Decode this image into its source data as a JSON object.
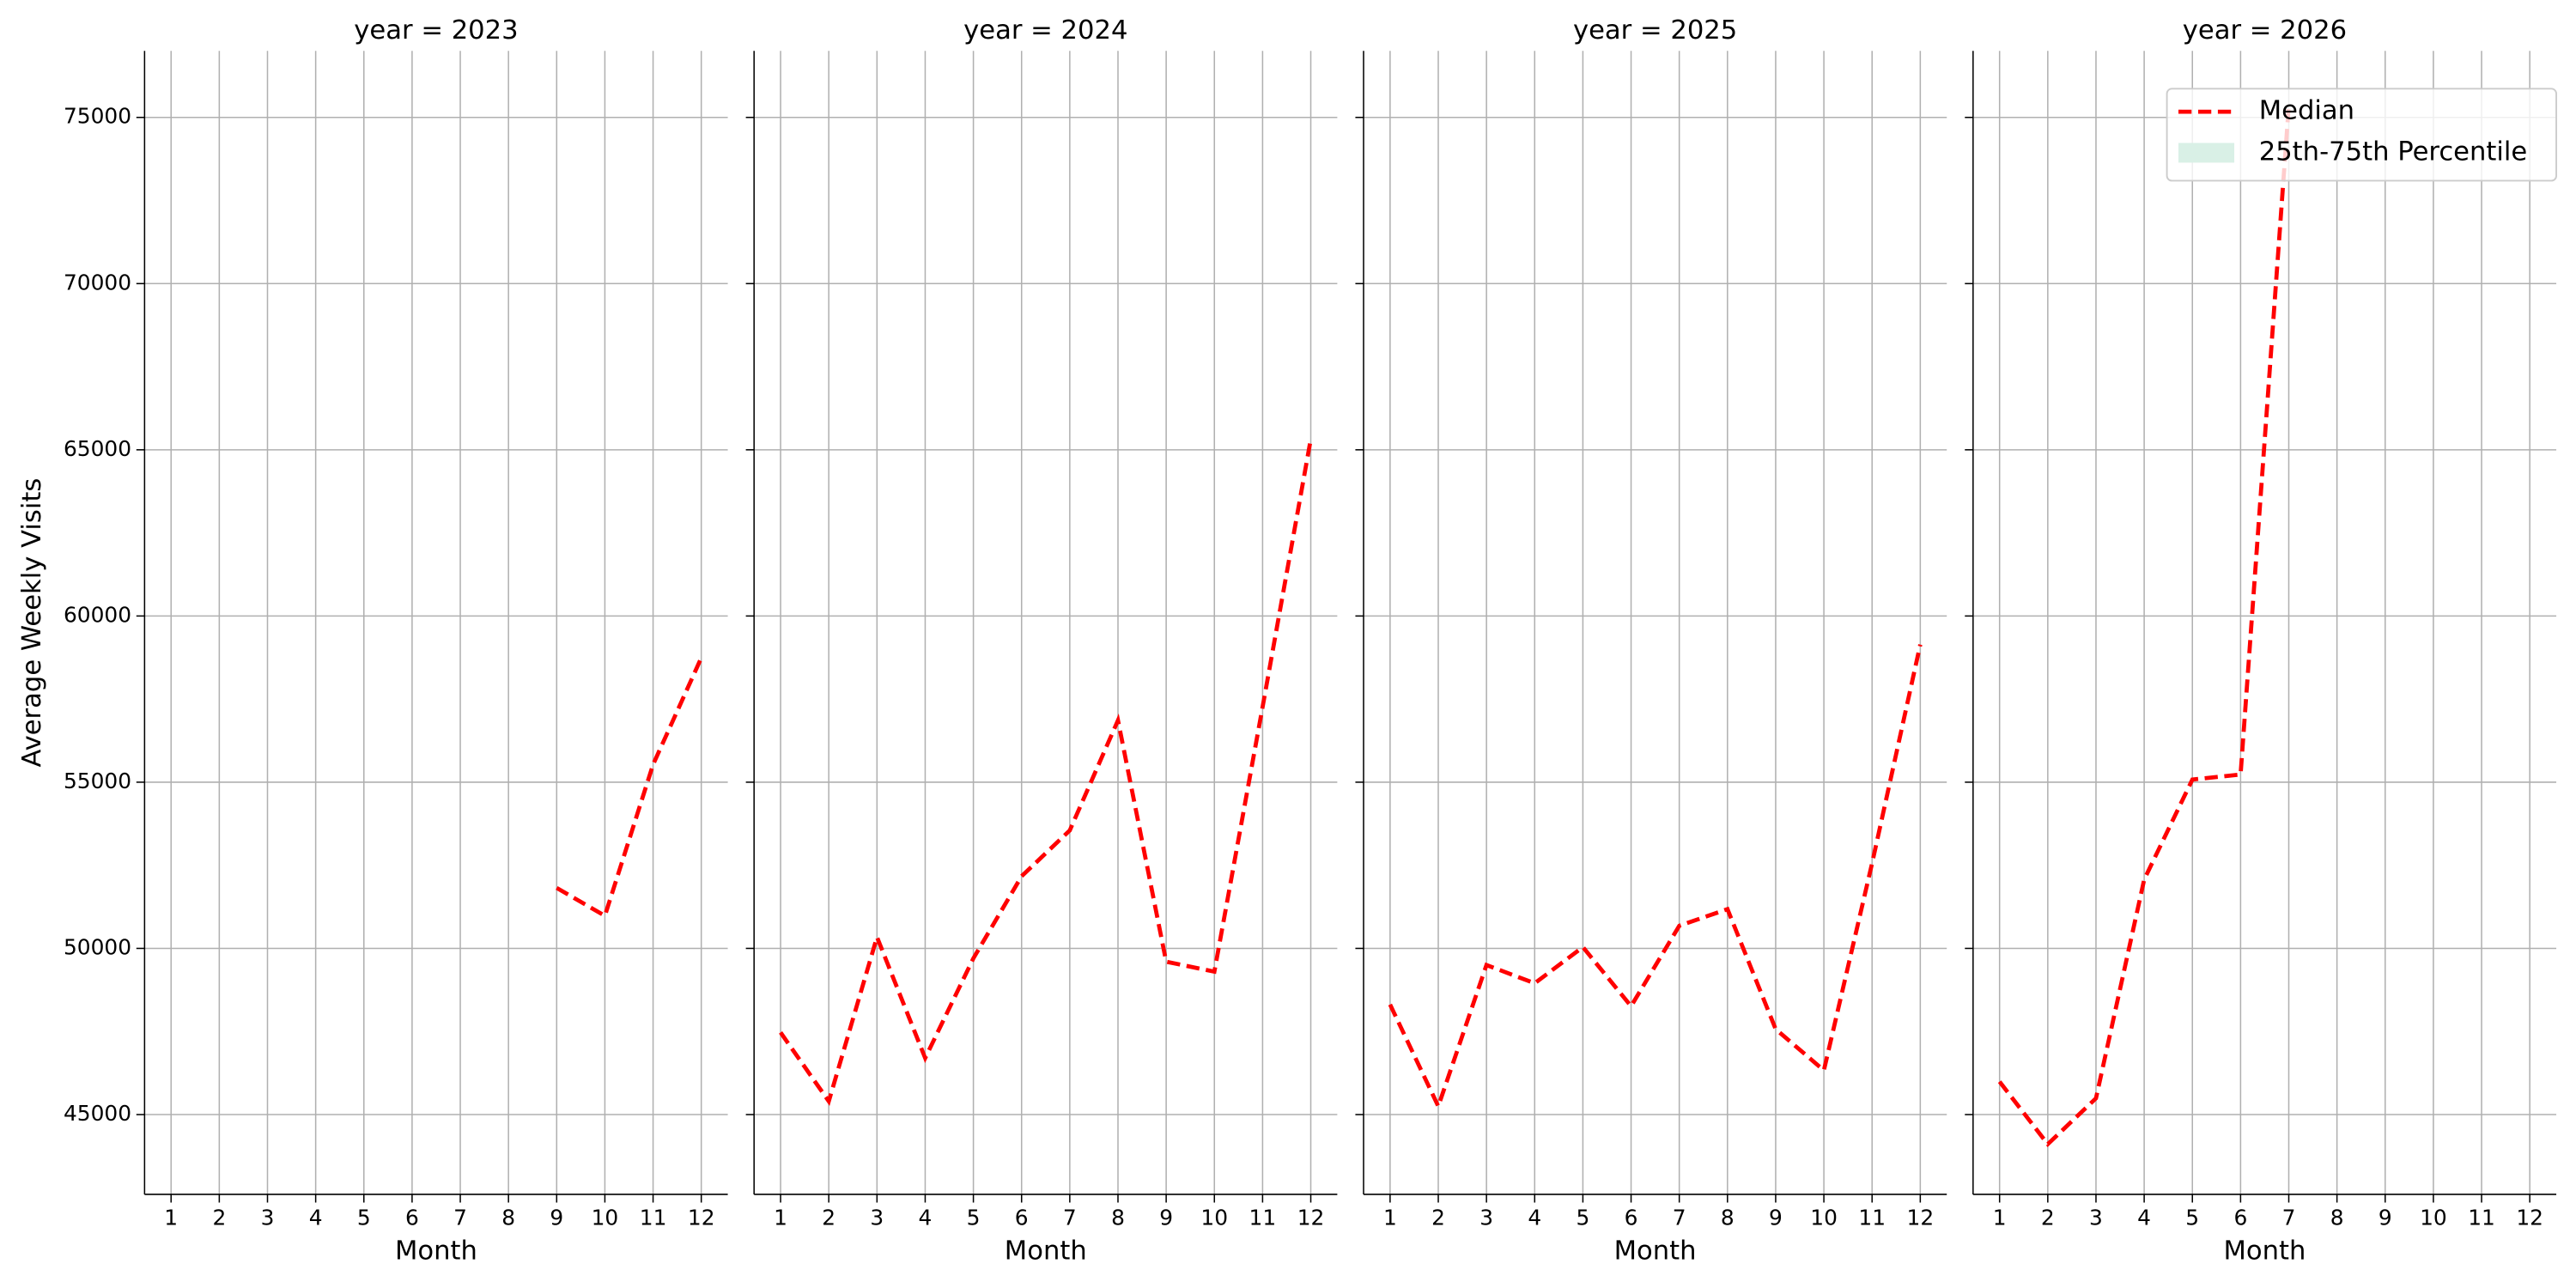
{
  "chart_data": [
    {
      "type": "line",
      "title": "year = 2023",
      "xlabel": "Month",
      "ylabel": "Average Weekly Visits",
      "x": [
        1,
        2,
        3,
        4,
        5,
        6,
        7,
        8,
        9,
        10,
        11,
        12
      ],
      "series": [
        {
          "color": "#ff0000",
          "style": "dashed",
          "values": [
            null,
            null,
            null,
            null,
            null,
            null,
            null,
            null,
            51820,
            50980,
            55530,
            58740
          ]
        }
      ],
      "xlim": [
        0.45,
        12.55
      ],
      "xticks": [
        1,
        2,
        3,
        4,
        5,
        6,
        7,
        8,
        9,
        10,
        11,
        12
      ],
      "ylim": [
        42600,
        77000
      ],
      "yticks": [
        45000,
        50000,
        55000,
        60000,
        65000,
        70000,
        75000
      ],
      "grid": true
    },
    {
      "type": "line",
      "title": "year = 2024",
      "xlabel": "Month",
      "x": [
        1,
        2,
        3,
        4,
        5,
        6,
        7,
        8,
        9,
        10,
        11,
        12
      ],
      "series": [
        {
          "color": "#ff0000",
          "style": "dashed",
          "values": [
            47470,
            45400,
            50340,
            46700,
            49700,
            52170,
            53550,
            56860,
            49600,
            49300,
            57260,
            65320
          ]
        }
      ],
      "xlim": [
        0.45,
        12.55
      ],
      "xticks": [
        1,
        2,
        3,
        4,
        5,
        6,
        7,
        8,
        9,
        10,
        11,
        12
      ],
      "ylim": [
        42600,
        77000
      ],
      "yticks": [
        45000,
        50000,
        55000,
        60000,
        65000,
        70000,
        75000
      ],
      "grid": true
    },
    {
      "type": "line",
      "title": "year = 2025",
      "xlabel": "Month",
      "x": [
        1,
        2,
        3,
        4,
        5,
        6,
        7,
        8,
        9,
        10,
        11,
        12
      ],
      "series": [
        {
          "color": "#ff0000",
          "style": "dashed",
          "values": [
            48310,
            45250,
            49500,
            48950,
            50040,
            48260,
            50680,
            51180,
            47570,
            46330,
            52560,
            59140
          ]
        }
      ],
      "xlim": [
        0.45,
        12.55
      ],
      "xticks": [
        1,
        2,
        3,
        4,
        5,
        6,
        7,
        8,
        9,
        10,
        11,
        12
      ],
      "ylim": [
        42600,
        77000
      ],
      "yticks": [
        45000,
        50000,
        55000,
        60000,
        65000,
        70000,
        75000
      ],
      "grid": true
    },
    {
      "type": "line",
      "title": "year = 2026",
      "xlabel": "Month",
      "x": [
        1,
        2,
        3,
        4,
        5,
        6,
        7,
        8,
        9,
        10,
        11,
        12
      ],
      "series": [
        {
          "color": "#ff0000",
          "style": "dashed",
          "values": [
            45990,
            44110,
            45490,
            52070,
            55080,
            55230,
            75350,
            null,
            null,
            null,
            null,
            null
          ]
        }
      ],
      "xlim": [
        0.45,
        12.55
      ],
      "xticks": [
        1,
        2,
        3,
        4,
        5,
        6,
        7,
        8,
        9,
        10,
        11,
        12
      ],
      "ylim": [
        42600,
        77000
      ],
      "yticks": [
        45000,
        50000,
        55000,
        60000,
        65000,
        70000,
        75000
      ],
      "grid": true,
      "legend": {
        "position": "upper right",
        "items": [
          {
            "name": "Median",
            "color": "#ff0000",
            "style": "dashed"
          },
          {
            "name": "25th-75th Percentile",
            "color": "#d9f0e6",
            "style": "patch"
          }
        ]
      }
    }
  ]
}
